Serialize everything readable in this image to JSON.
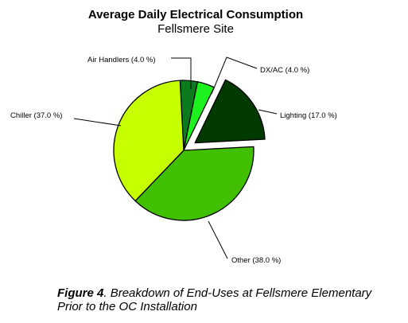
{
  "chart_data": {
    "type": "pie",
    "title": "Average Daily Electrical Consumption",
    "subtitle": "Fellsmere Site",
    "slices": [
      {
        "label": "Air Handlers (4.0 %)",
        "value": 4.0,
        "color": "#0c7a1e",
        "exploded": false
      },
      {
        "label": "DX/AC (4.0 %)",
        "value": 4.0,
        "color": "#1ef21e",
        "exploded": false
      },
      {
        "label": "Lighting (17.0 %)",
        "value": 17.0,
        "color": "#003a00",
        "exploded": true
      },
      {
        "label": "Other (38.0 %)",
        "value": 38.0,
        "color": "#40c000",
        "exploded": false
      },
      {
        "label": "Chiller (37.0 %)",
        "value": 37.0,
        "color": "#c6ff00",
        "exploded": false
      }
    ]
  },
  "caption": {
    "figure_label": "Figure 4",
    "text_line1": ".  Breakdown of End-Uses at Fellsmere Elementary",
    "text_line2": "Prior to the OC Installation"
  }
}
